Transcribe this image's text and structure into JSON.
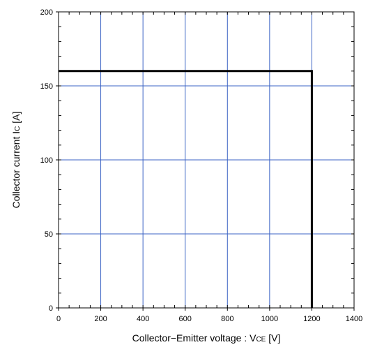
{
  "chart_data": {
    "type": "line",
    "title": "",
    "xlabel_main": "Collector−Emitter voltage : V",
    "xlabel_sub": "CE",
    "xlabel_unit": " [V]",
    "ylabel_main": "Collector current I",
    "ylabel_sub": "C",
    "ylabel_unit": " [A]",
    "xlim": [
      0,
      1400
    ],
    "ylim": [
      0,
      200
    ],
    "x_ticks": [
      "0",
      "200",
      "400",
      "600",
      "800",
      "1000",
      "1200",
      "1400"
    ],
    "y_ticks": [
      "0",
      "50",
      "100",
      "150",
      "200"
    ],
    "x_grid_step": 200,
    "y_grid_step": 50,
    "x_minor_step": 50,
    "y_minor_step": 10,
    "grid": true,
    "grid_color": "#3b63c4",
    "line_color": "#000000",
    "series": [
      {
        "x": [
          0,
          1200,
          1200
        ],
        "y": [
          160,
          160,
          0
        ]
      }
    ]
  }
}
